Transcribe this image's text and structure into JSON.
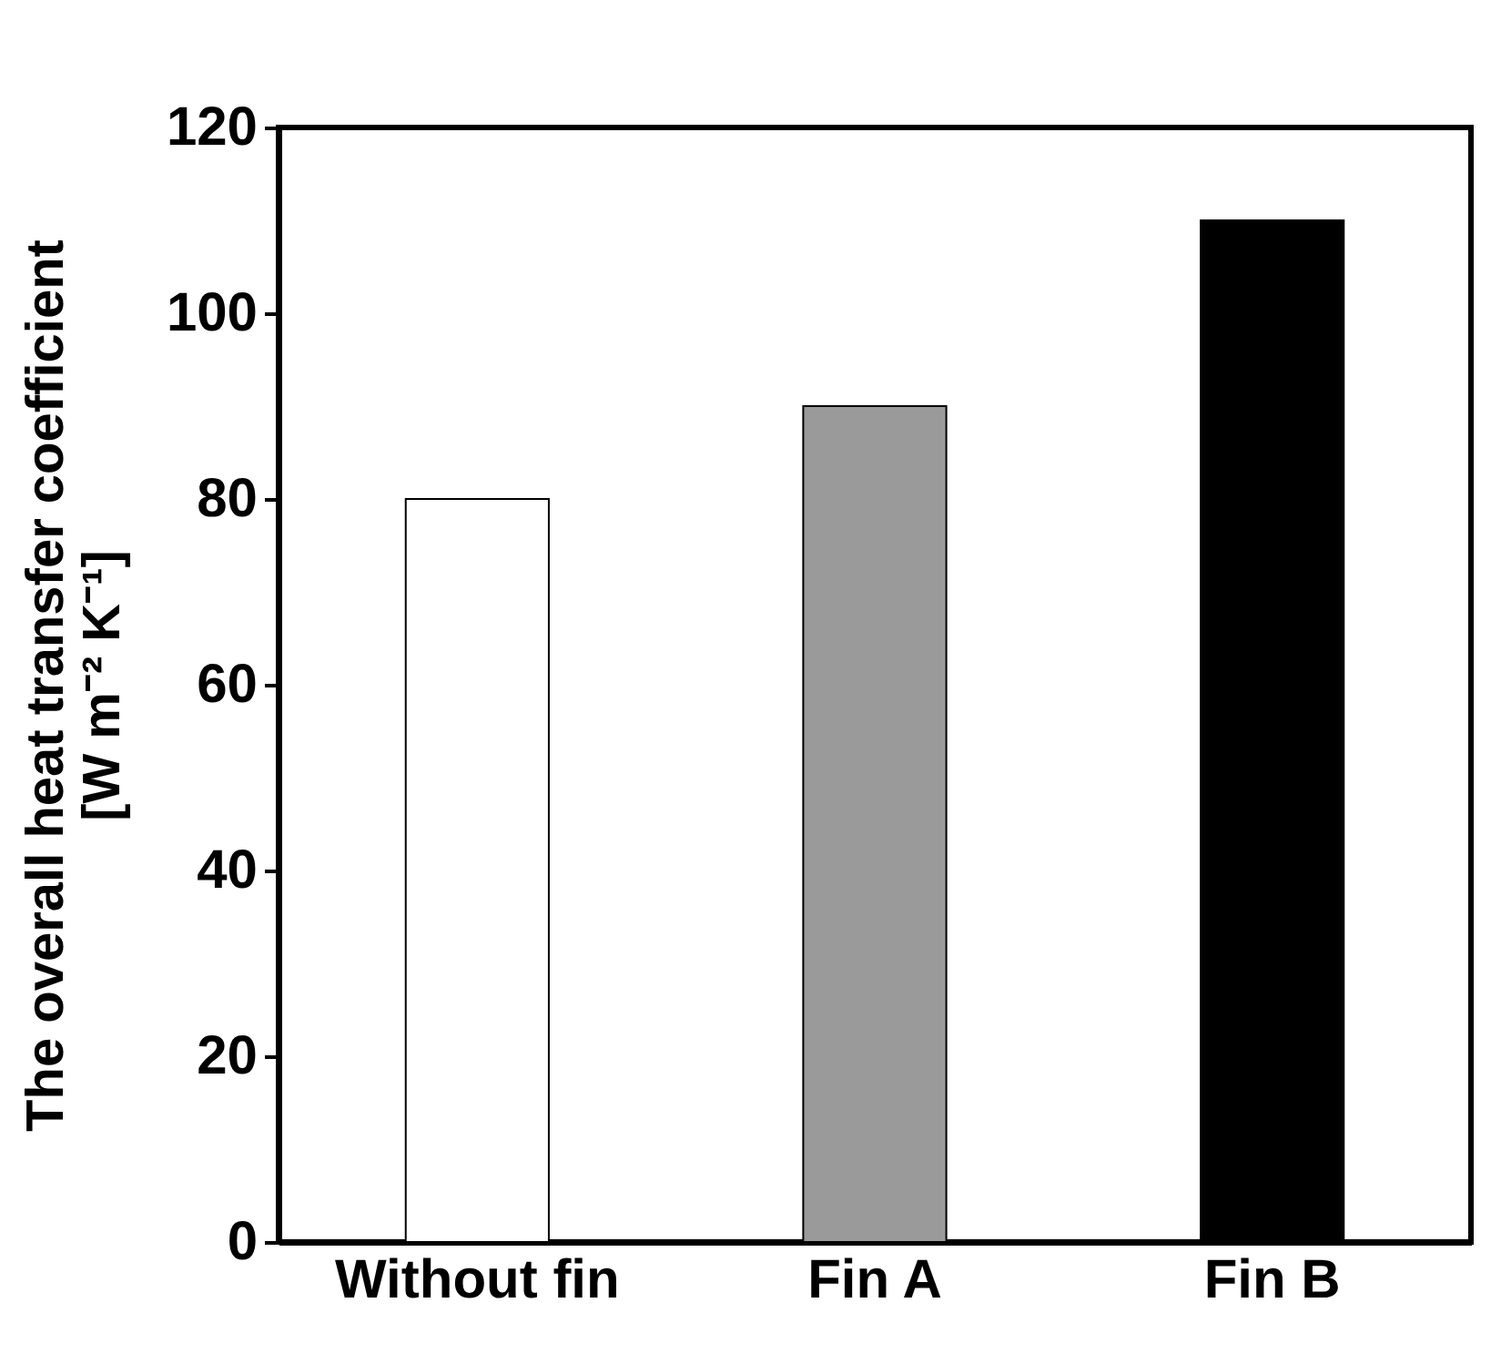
{
  "chart_data": {
    "type": "bar",
    "ylabel": "The overall heat transfer coefficient\n[W m⁻² K⁻¹]",
    "categories": [
      "Without fin",
      "Fin A",
      "Fin B"
    ],
    "values": [
      80,
      90,
      110
    ],
    "colors": [
      "#ffffff",
      "#9a9a9a",
      "#000000"
    ],
    "ylim": [
      0,
      120
    ],
    "yticks": [
      0,
      20,
      40,
      60,
      80,
      100,
      120
    ],
    "grid": false
  }
}
